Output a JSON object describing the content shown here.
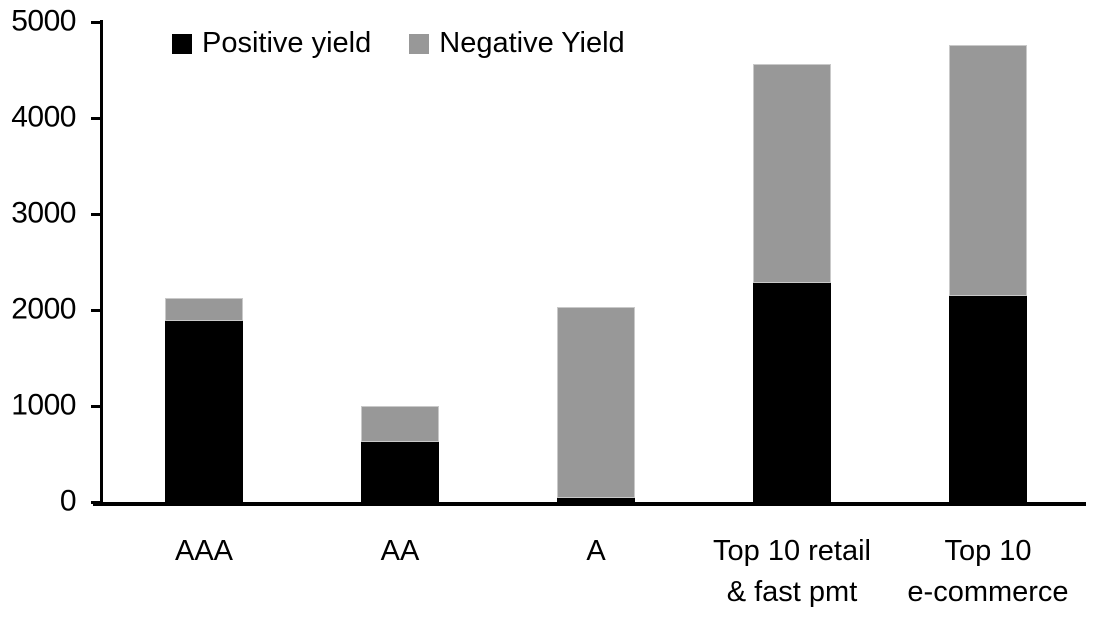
{
  "chart_data": {
    "type": "bar",
    "stacked": true,
    "title": "",
    "xlabel": "",
    "ylabel": "",
    "categories": [
      "AAA",
      "AA",
      "A",
      "Top 10 retail & fast pmt",
      "Top 10 e-commerce"
    ],
    "category_lines": [
      [
        "AAA"
      ],
      [
        "AA"
      ],
      [
        "A"
      ],
      [
        "Top 10 retail",
        "& fast pmt"
      ],
      [
        "Top 10",
        "e-commerce"
      ]
    ],
    "series": [
      {
        "name": "Positive yield",
        "color": "#000000",
        "values": [
          1890,
          620,
          40,
          2280,
          2150
        ]
      },
      {
        "name": "Negative Yield",
        "color": "#989898",
        "values": [
          230,
          380,
          1990,
          2280,
          2610
        ]
      }
    ],
    "ylim": [
      0,
      5000
    ],
    "yticks": [
      0,
      1000,
      2000,
      3000,
      4000,
      5000
    ],
    "grid": false,
    "legend_position": "top-left",
    "axis_color": "#000000",
    "background_color": "#ffffff",
    "gray_segment_border_color": "#c9c9c9"
  }
}
